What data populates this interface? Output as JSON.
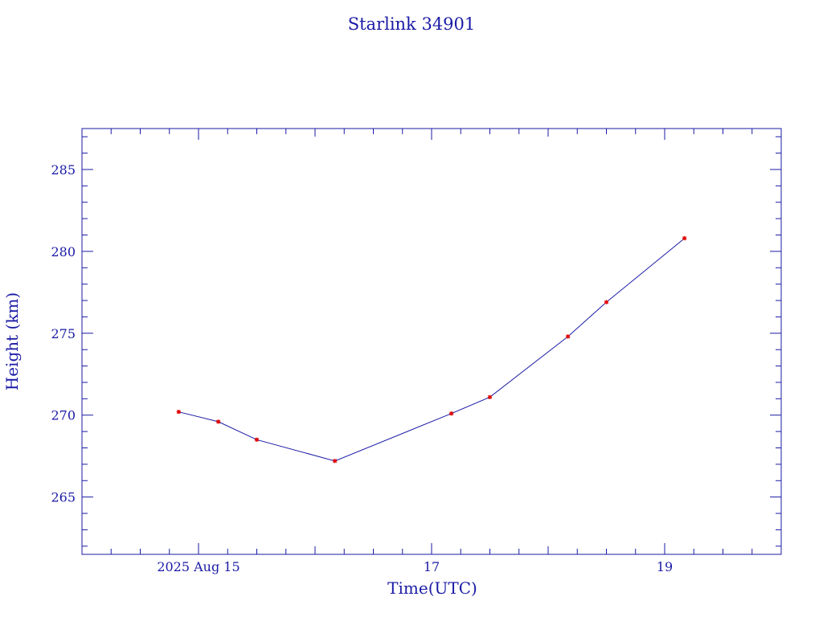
{
  "chart_data": {
    "type": "line",
    "title": "Starlink 34901",
    "xlabel": "Time(UTC)",
    "ylabel": "Height (km)",
    "x_tick_labels": [
      "2025 Aug 15",
      "17",
      "19"
    ],
    "x_tick_days": [
      15,
      17,
      19
    ],
    "xlim_days": [
      14.0,
      20.0
    ],
    "y_ticks": [
      265,
      270,
      275,
      280,
      285
    ],
    "ylim": [
      261.5,
      287.5
    ],
    "grid": false,
    "colors": {
      "axis": "#1a1aa6",
      "line": "#1a1aa6",
      "marker": "#e00000"
    },
    "series": [
      {
        "x": [
          "2025-08-14T20:00",
          "2025-08-15T04:00",
          "2025-08-15T12:00",
          "2025-08-16T04:00",
          "2025-08-17T04:00",
          "2025-08-17T12:00",
          "2025-08-18T04:00",
          "2025-08-18T12:00",
          "2025-08-19T04:00"
        ],
        "x_day": [
          14.83,
          15.17,
          15.5,
          16.17,
          17.17,
          17.5,
          18.17,
          18.5,
          19.17
        ],
        "y": [
          270.2,
          269.6,
          268.5,
          267.2,
          270.1,
          271.1,
          274.8,
          276.9,
          280.8
        ]
      }
    ]
  }
}
